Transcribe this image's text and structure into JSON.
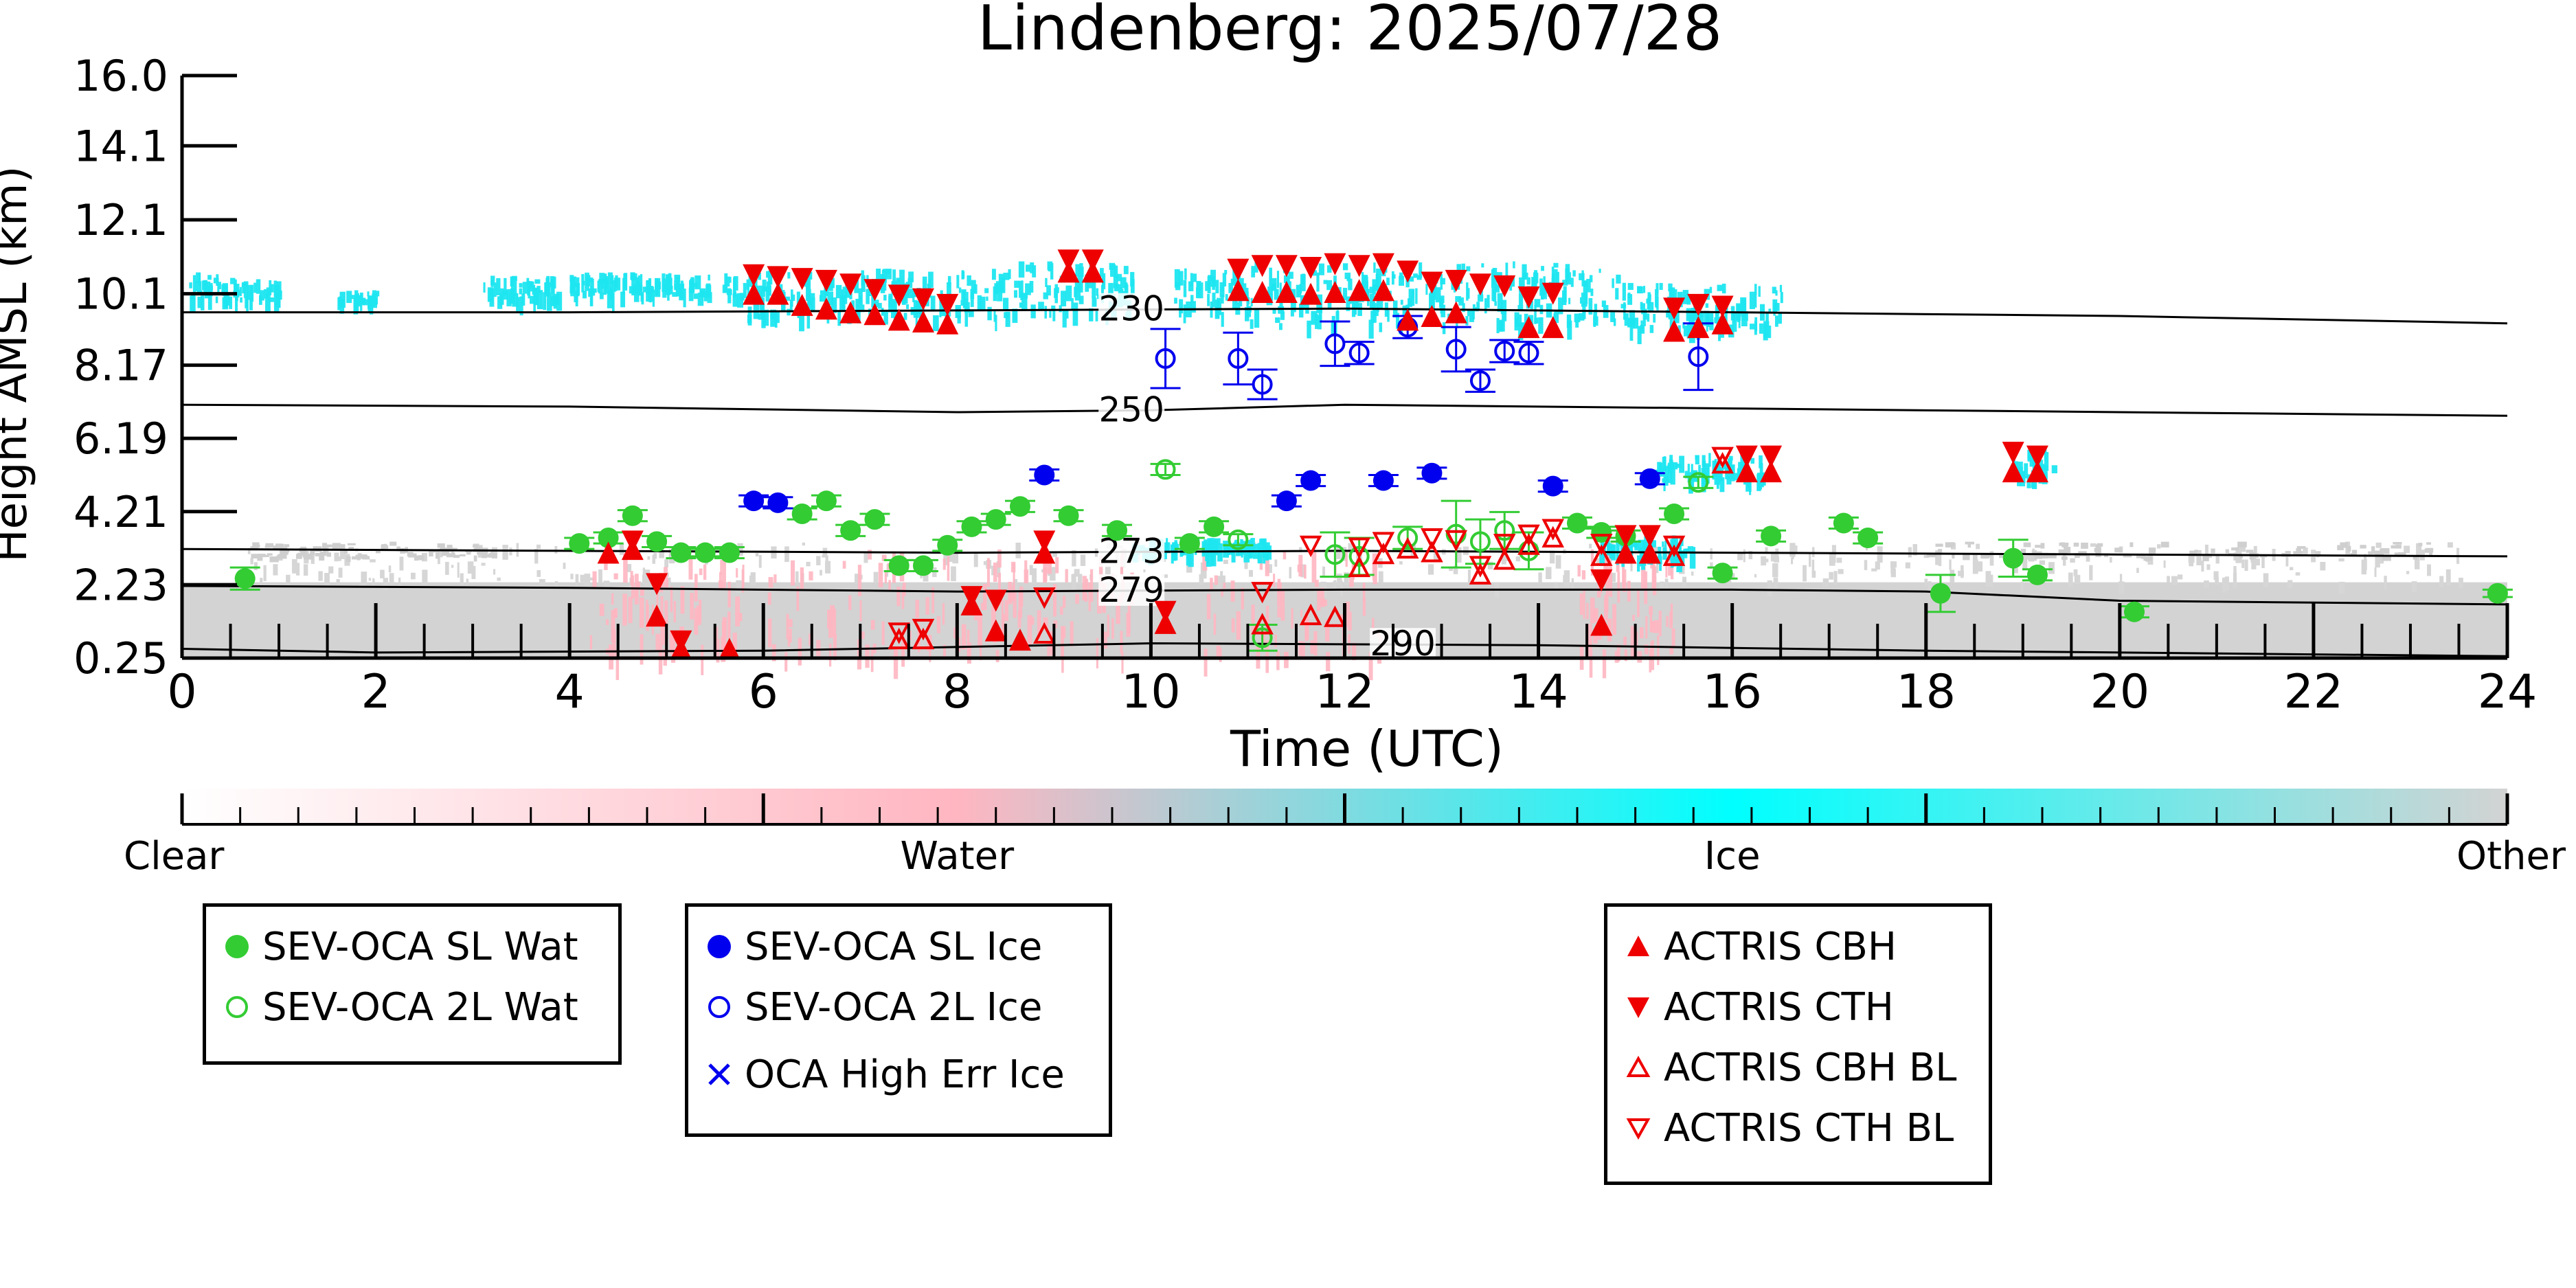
{
  "chart_data": {
    "type": "scatter",
    "title": "Lindenberg: 2025/07/28",
    "xlabel": "Time (UTC)",
    "ylabel": "Height AMSL (km)",
    "xlim": [
      0,
      24
    ],
    "ylim": [
      0.25,
      16.0
    ],
    "x_ticks": [
      "0",
      "2",
      "4",
      "6",
      "8",
      "10",
      "12",
      "14",
      "16",
      "18",
      "20",
      "22",
      "24"
    ],
    "y_ticks": [
      "0.25",
      "2.23",
      "4.21",
      "6.19",
      "8.17",
      "10.1",
      "12.1",
      "14.1",
      "16.0"
    ],
    "colorbar": {
      "labels": [
        "Clear",
        "Water",
        "Ice",
        "Other"
      ],
      "colors": [
        "#ffffff",
        "#ffb6c1",
        "#00ffff",
        "#d3d3d3"
      ]
    },
    "isotherms": [
      {
        "label": "230",
        "label_x": 9.8,
        "points": [
          [
            0,
            9.6
          ],
          [
            4,
            9.6
          ],
          [
            8,
            9.65
          ],
          [
            12,
            9.7
          ],
          [
            16,
            9.6
          ],
          [
            20,
            9.5
          ],
          [
            24,
            9.3
          ]
        ]
      },
      {
        "label": "250",
        "label_x": 9.8,
        "points": [
          [
            0,
            7.1
          ],
          [
            4,
            7.05
          ],
          [
            8,
            6.9
          ],
          [
            10,
            6.95
          ],
          [
            12,
            7.1
          ],
          [
            16,
            7.0
          ],
          [
            20,
            6.9
          ],
          [
            24,
            6.8
          ]
        ]
      },
      {
        "label": "273",
        "label_x": 9.8,
        "points": [
          [
            0,
            3.2
          ],
          [
            4,
            3.15
          ],
          [
            8,
            3.1
          ],
          [
            12,
            3.15
          ],
          [
            16,
            3.1
          ],
          [
            20,
            3.05
          ],
          [
            24,
            3.0
          ]
        ]
      },
      {
        "label": "279",
        "label_x": 9.8,
        "points": [
          [
            0,
            2.2
          ],
          [
            4,
            2.15
          ],
          [
            8,
            2.05
          ],
          [
            12,
            2.1
          ],
          [
            16,
            2.1
          ],
          [
            18,
            2.05
          ],
          [
            20,
            1.8
          ],
          [
            24,
            1.7
          ]
        ]
      },
      {
        "label": "290",
        "label_x": 12.6,
        "points": [
          [
            0,
            0.5
          ],
          [
            2,
            0.4
          ],
          [
            6,
            0.45
          ],
          [
            10,
            0.65
          ],
          [
            14,
            0.6
          ],
          [
            18,
            0.45
          ],
          [
            24,
            0.3
          ]
        ]
      }
    ],
    "series": [
      {
        "name": "SEV-OCA SL Wat",
        "marker": "circle-filled",
        "color": "#33cc33",
        "points": [
          [
            0.65,
            2.4,
            0.3
          ],
          [
            4.1,
            3.35,
            0.15
          ],
          [
            4.4,
            3.5,
            0.15
          ],
          [
            4.65,
            4.1,
            0.15
          ],
          [
            4.9,
            3.4,
            0.15
          ],
          [
            5.15,
            3.1,
            0.15
          ],
          [
            5.4,
            3.1,
            0.1
          ],
          [
            5.65,
            3.1,
            0.15
          ],
          [
            6.4,
            4.15,
            0.15
          ],
          [
            6.65,
            4.5,
            0.15
          ],
          [
            6.9,
            3.7,
            0.15
          ],
          [
            7.15,
            4.0,
            0.15
          ],
          [
            7.4,
            2.75,
            0.15
          ],
          [
            7.65,
            2.75,
            0.15
          ],
          [
            7.9,
            3.3,
            0.15
          ],
          [
            8.15,
            3.8,
            0.15
          ],
          [
            8.4,
            4.0,
            0.15
          ],
          [
            8.65,
            4.35,
            0.15
          ],
          [
            9.15,
            4.1,
            0.15
          ],
          [
            9.65,
            3.7,
            0.15
          ],
          [
            10.4,
            3.35,
            0.15
          ],
          [
            10.65,
            3.8,
            0.15
          ],
          [
            14.4,
            3.9,
            0.15
          ],
          [
            14.65,
            3.65,
            0.15
          ],
          [
            14.9,
            3.55,
            0.15
          ],
          [
            15.4,
            4.15,
            0.15
          ],
          [
            15.9,
            2.55,
            0.15
          ],
          [
            16.4,
            3.55,
            0.15
          ],
          [
            17.15,
            3.9,
            0.15
          ],
          [
            17.4,
            3.5,
            0.15
          ],
          [
            18.15,
            2.0,
            0.5
          ],
          [
            18.9,
            2.95,
            0.5
          ],
          [
            19.15,
            2.5,
            0.15
          ],
          [
            20.15,
            1.5,
            0.15
          ],
          [
            23.9,
            2.0,
            0.1
          ]
        ]
      },
      {
        "name": "SEV-OCA 2L Wat",
        "marker": "circle-open",
        "color": "#33cc33",
        "points": [
          [
            10.15,
            5.35,
            0.15
          ],
          [
            10.9,
            3.45,
            0.15
          ],
          [
            11.15,
            0.8,
            0.35
          ],
          [
            11.9,
            3.05,
            0.6
          ],
          [
            12.15,
            3.0,
            0.5
          ],
          [
            12.65,
            3.5,
            0.3
          ],
          [
            13.15,
            3.6,
            0.9
          ],
          [
            13.4,
            3.4,
            0.6
          ],
          [
            13.65,
            3.7,
            0.5
          ],
          [
            13.9,
            3.15,
            0.5
          ],
          [
            15.65,
            5.0,
            0.15
          ]
        ]
      },
      {
        "name": "SEV-OCA SL Ice",
        "marker": "circle-filled",
        "color": "#0000ee",
        "points": [
          [
            5.9,
            4.5,
            0.15
          ],
          [
            6.15,
            4.45,
            0.15
          ],
          [
            8.9,
            5.2,
            0.15
          ],
          [
            11.4,
            4.5,
            0.15
          ],
          [
            11.65,
            5.05,
            0.15
          ],
          [
            12.4,
            5.05,
            0.15
          ],
          [
            12.9,
            5.25,
            0.15
          ],
          [
            14.15,
            4.9,
            0.15
          ],
          [
            15.15,
            5.1,
            0.15
          ]
        ]
      },
      {
        "name": "SEV-OCA 2L Ice",
        "marker": "circle-open",
        "color": "#0000ee",
        "points": [
          [
            10.15,
            8.35,
            0.8
          ],
          [
            10.9,
            8.35,
            0.7
          ],
          [
            11.15,
            7.65,
            0.4
          ],
          [
            11.9,
            8.75,
            0.6
          ],
          [
            12.15,
            8.5,
            0.3
          ],
          [
            12.65,
            9.2,
            0.3
          ],
          [
            13.15,
            8.6,
            0.6
          ],
          [
            13.4,
            7.75,
            0.3
          ],
          [
            13.65,
            8.55,
            0.3
          ],
          [
            13.9,
            8.5,
            0.3
          ],
          [
            15.65,
            8.4,
            0.9
          ]
        ]
      },
      {
        "name": "OCA High Err Ice",
        "marker": "x",
        "color": "#0000ee",
        "points": []
      },
      {
        "name": "ACTRIS CBH",
        "marker": "triangle-up-filled",
        "color": "#ee0000",
        "points": [
          [
            4.4,
            3.1
          ],
          [
            4.65,
            3.2
          ],
          [
            4.9,
            1.4
          ],
          [
            5.15,
            0.5
          ],
          [
            5.65,
            0.5
          ],
          [
            5.9,
            10.1
          ],
          [
            6.15,
            10.1
          ],
          [
            6.4,
            9.8
          ],
          [
            6.65,
            9.7
          ],
          [
            6.9,
            9.6
          ],
          [
            7.15,
            9.55
          ],
          [
            7.4,
            9.4
          ],
          [
            7.65,
            9.35
          ],
          [
            7.9,
            9.3
          ],
          [
            8.15,
            1.7
          ],
          [
            8.4,
            1.0
          ],
          [
            8.65,
            0.75
          ],
          [
            8.9,
            3.1
          ],
          [
            9.15,
            10.7
          ],
          [
            9.4,
            10.7
          ],
          [
            10.15,
            1.2
          ],
          [
            10.9,
            10.2
          ],
          [
            11.15,
            10.15
          ],
          [
            11.4,
            10.15
          ],
          [
            11.65,
            10.1
          ],
          [
            11.9,
            10.15
          ],
          [
            12.15,
            10.2
          ],
          [
            12.4,
            10.2
          ],
          [
            12.65,
            9.4
          ],
          [
            12.9,
            9.5
          ],
          [
            13.15,
            9.6
          ],
          [
            13.9,
            9.2
          ],
          [
            14.15,
            9.2
          ],
          [
            14.65,
            1.15
          ],
          [
            14.9,
            3.1
          ],
          [
            15.15,
            3.1
          ],
          [
            15.4,
            9.1
          ],
          [
            15.65,
            9.2
          ],
          [
            15.9,
            9.3
          ],
          [
            16.15,
            5.3
          ],
          [
            16.4,
            5.3
          ],
          [
            18.9,
            5.3
          ],
          [
            19.15,
            5.3
          ]
        ]
      },
      {
        "name": "ACTRIS CTH",
        "marker": "triangle-down-filled",
        "color": "#ee0000",
        "points": [
          [
            4.65,
            3.4
          ],
          [
            4.9,
            2.25
          ],
          [
            5.15,
            0.7
          ],
          [
            5.9,
            10.6
          ],
          [
            6.15,
            10.55
          ],
          [
            6.4,
            10.5
          ],
          [
            6.65,
            10.45
          ],
          [
            6.9,
            10.35
          ],
          [
            7.15,
            10.2
          ],
          [
            7.4,
            10.05
          ],
          [
            7.65,
            9.95
          ],
          [
            7.9,
            9.8
          ],
          [
            8.15,
            1.9
          ],
          [
            8.4,
            1.8
          ],
          [
            8.9,
            3.4
          ],
          [
            9.15,
            11.0
          ],
          [
            9.4,
            11.0
          ],
          [
            10.15,
            1.5
          ],
          [
            10.9,
            10.75
          ],
          [
            11.15,
            10.85
          ],
          [
            11.4,
            10.85
          ],
          [
            11.65,
            10.8
          ],
          [
            11.9,
            10.9
          ],
          [
            12.15,
            10.85
          ],
          [
            12.4,
            10.9
          ],
          [
            12.65,
            10.7
          ],
          [
            12.9,
            10.4
          ],
          [
            13.15,
            10.45
          ],
          [
            13.4,
            10.35
          ],
          [
            13.65,
            10.3
          ],
          [
            13.9,
            10.0
          ],
          [
            14.15,
            10.1
          ],
          [
            14.65,
            2.35
          ],
          [
            14.9,
            3.55
          ],
          [
            15.15,
            3.55
          ],
          [
            15.4,
            9.7
          ],
          [
            15.65,
            9.8
          ],
          [
            15.9,
            9.75
          ],
          [
            16.15,
            5.7
          ],
          [
            16.4,
            5.7
          ],
          [
            18.9,
            5.8
          ],
          [
            19.15,
            5.7
          ]
        ]
      },
      {
        "name": "ACTRIS CBH BL",
        "marker": "triangle-up-open",
        "color": "#ee0000",
        "points": [
          [
            7.4,
            0.75
          ],
          [
            7.65,
            0.75
          ],
          [
            8.9,
            0.9
          ],
          [
            11.15,
            1.15
          ],
          [
            11.65,
            1.4
          ],
          [
            11.9,
            1.35
          ],
          [
            12.15,
            2.7
          ],
          [
            12.4,
            3.05
          ],
          [
            12.65,
            3.2
          ],
          [
            12.9,
            3.1
          ],
          [
            13.4,
            2.5
          ],
          [
            13.65,
            2.9
          ],
          [
            13.9,
            3.3
          ],
          [
            14.15,
            3.5
          ],
          [
            14.65,
            3.0
          ],
          [
            15.4,
            3.0
          ],
          [
            15.9,
            5.5
          ]
        ]
      },
      {
        "name": "ACTRIS CTH BL",
        "marker": "triangle-down-open",
        "color": "#ee0000",
        "points": [
          [
            7.4,
            0.95
          ],
          [
            7.65,
            1.05
          ],
          [
            8.9,
            1.9
          ],
          [
            11.15,
            2.05
          ],
          [
            11.65,
            3.3
          ],
          [
            12.15,
            3.25
          ],
          [
            12.4,
            3.4
          ],
          [
            12.9,
            3.5
          ],
          [
            13.15,
            3.45
          ],
          [
            13.4,
            2.75
          ],
          [
            13.65,
            3.35
          ],
          [
            13.9,
            3.6
          ],
          [
            14.15,
            3.75
          ],
          [
            14.65,
            3.35
          ],
          [
            15.4,
            3.3
          ],
          [
            15.9,
            5.7
          ]
        ]
      }
    ],
    "legend": {
      "box1": [
        "SEV-OCA SL Wat",
        "SEV-OCA 2L Wat"
      ],
      "box2": [
        "SEV-OCA SL Ice",
        "SEV-OCA 2L Ice",
        "OCA High Err Ice"
      ],
      "box3": [
        "ACTRIS CBH",
        "ACTRIS CTH",
        "ACTRIS CBH BL",
        "ACTRIS CTH BL"
      ]
    }
  }
}
